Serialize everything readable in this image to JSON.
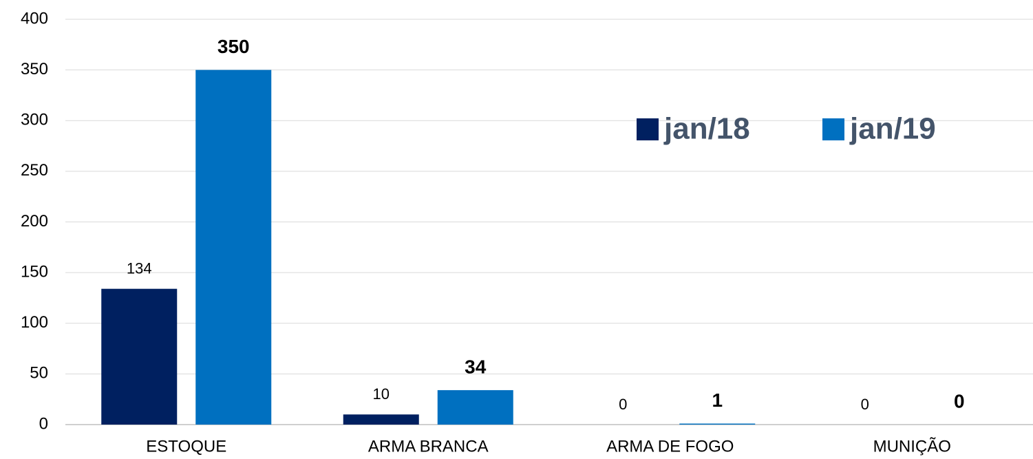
{
  "chart_data": {
    "type": "bar",
    "categories": [
      "ESTOQUE",
      "ARMA BRANCA",
      "ARMA DE FOGO",
      "MUNIÇÃO"
    ],
    "series": [
      {
        "name": "jan/18",
        "color": "#002060",
        "values": [
          134,
          10,
          0,
          0
        ]
      },
      {
        "name": "jan/19",
        "color": "#0070c0",
        "values": [
          350,
          34,
          1,
          0
        ]
      }
    ],
    "ylim": [
      0,
      400
    ],
    "yticks": [
      0,
      50,
      100,
      150,
      200,
      250,
      300,
      350,
      400
    ],
    "grid": true,
    "legend": "upper right"
  }
}
